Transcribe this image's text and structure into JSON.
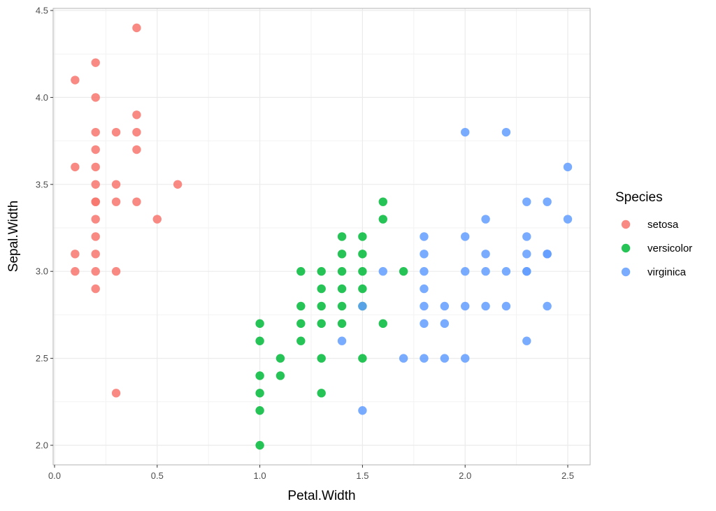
{
  "chart_data": {
    "type": "scatter",
    "title": "",
    "xlabel": "Petal.Width",
    "ylabel": "Sepal.Width",
    "xlim": [
      0.0,
      2.6
    ],
    "ylim": [
      1.9,
      4.5
    ],
    "xticks": [
      0.0,
      0.5,
      1.0,
      1.5,
      2.0,
      2.5
    ],
    "yticks": [
      2.0,
      2.5,
      3.0,
      3.5,
      4.0,
      4.5
    ],
    "xtick_labels": [
      "0.0",
      "0.5",
      "1.0",
      "1.5",
      "2.0",
      "2.5"
    ],
    "ytick_labels": [
      "2.0",
      "2.5",
      "3.0",
      "3.5",
      "4.0",
      "4.5"
    ],
    "grid": true,
    "legend": {
      "title": "Species",
      "placement": "right"
    },
    "series": [
      {
        "name": "setosa",
        "color": "#F8766D",
        "x": [
          0.1,
          0.1,
          0.1,
          0.1,
          0.2,
          0.2,
          0.2,
          0.2,
          0.2,
          0.2,
          0.2,
          0.2,
          0.2,
          0.2,
          0.2,
          0.2,
          0.2,
          0.3,
          0.3,
          0.3,
          0.3,
          0.3,
          0.4,
          0.4,
          0.4,
          0.4,
          0.4,
          0.5,
          0.6
        ],
        "y": [
          4.1,
          3.6,
          3.1,
          3.0,
          4.2,
          4.0,
          3.8,
          3.7,
          3.6,
          3.5,
          3.4,
          3.3,
          3.2,
          3.1,
          3.0,
          2.9,
          3.4,
          3.8,
          3.5,
          3.4,
          3.0,
          2.3,
          4.4,
          3.9,
          3.8,
          3.7,
          3.4,
          3.3,
          3.5
        ]
      },
      {
        "name": "versicolor",
        "color": "#00BA38",
        "x": [
          1.0,
          1.0,
          1.0,
          1.0,
          1.0,
          1.0,
          1.1,
          1.1,
          1.2,
          1.2,
          1.2,
          1.2,
          1.3,
          1.3,
          1.3,
          1.3,
          1.3,
          1.3,
          1.4,
          1.4,
          1.4,
          1.4,
          1.4,
          1.4,
          1.5,
          1.5,
          1.5,
          1.5,
          1.5,
          1.5,
          1.6,
          1.6,
          1.6,
          1.7
        ],
        "y": [
          2.7,
          2.6,
          2.4,
          2.3,
          2.2,
          2.0,
          2.5,
          2.4,
          3.0,
          2.8,
          2.7,
          2.6,
          3.0,
          2.9,
          2.8,
          2.7,
          2.5,
          2.3,
          3.2,
          3.1,
          3.0,
          2.9,
          2.8,
          2.7,
          3.2,
          3.1,
          3.0,
          2.9,
          2.5,
          2.8,
          3.4,
          3.3,
          2.7,
          3.0
        ]
      },
      {
        "name": "virginica",
        "color": "#619CFF",
        "x": [
          1.4,
          1.5,
          1.5,
          1.6,
          1.7,
          1.8,
          1.8,
          1.8,
          1.8,
          1.8,
          1.8,
          1.8,
          1.9,
          1.9,
          1.9,
          2.0,
          2.0,
          2.0,
          2.0,
          2.0,
          2.1,
          2.1,
          2.1,
          2.1,
          2.2,
          2.2,
          2.2,
          2.3,
          2.3,
          2.3,
          2.3,
          2.3,
          2.3,
          2.4,
          2.4,
          2.4,
          2.4,
          2.5,
          2.5
        ],
        "y": [
          2.6,
          2.8,
          2.2,
          3.0,
          2.5,
          3.2,
          3.1,
          3.0,
          2.9,
          2.8,
          2.7,
          2.5,
          2.8,
          2.7,
          2.5,
          3.8,
          3.2,
          3.0,
          2.8,
          2.5,
          3.3,
          3.1,
          3.0,
          2.8,
          3.8,
          3.0,
          2.8,
          3.4,
          3.2,
          3.1,
          3.0,
          2.6,
          3.0,
          3.4,
          3.1,
          2.8,
          3.1,
          3.6,
          3.3
        ]
      }
    ]
  }
}
